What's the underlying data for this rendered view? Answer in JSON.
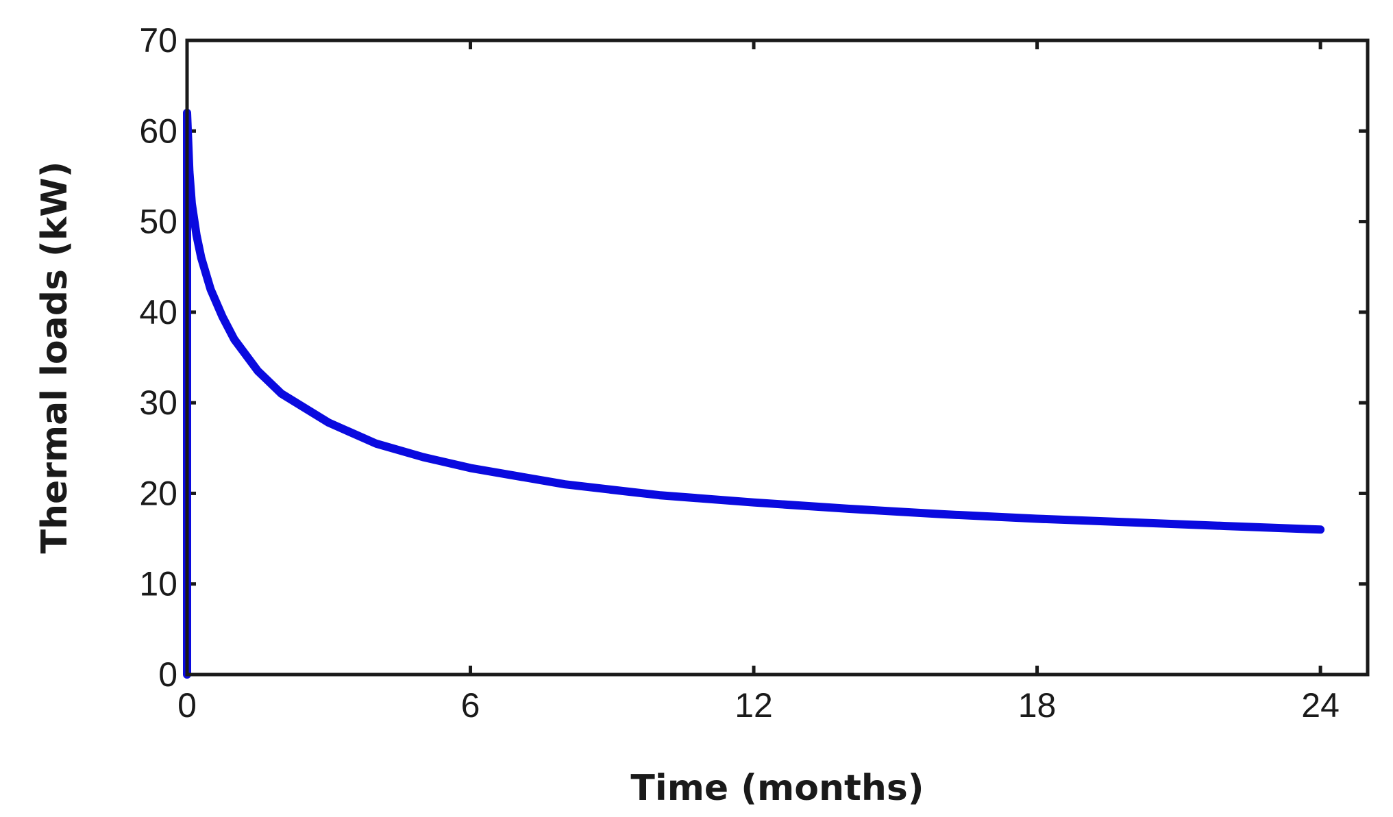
{
  "chart_data": {
    "type": "line",
    "title": "",
    "xlabel": "Time (months)",
    "ylabel": "Thermal loads (kW)",
    "xlim": [
      0,
      25
    ],
    "ylim": [
      0,
      70
    ],
    "xticks": [
      0,
      6,
      12,
      18,
      24
    ],
    "yticks": [
      0,
      10,
      20,
      30,
      40,
      50,
      60,
      70
    ],
    "grid": false,
    "legend": "none",
    "series": [
      {
        "color": "#0a0adf",
        "x": [
          0,
          0,
          0.05,
          0.1,
          0.2,
          0.3,
          0.5,
          0.75,
          1,
          1.5,
          2,
          3,
          4,
          5,
          6,
          8,
          10,
          12,
          14,
          16,
          18,
          20,
          22,
          24
        ],
        "y": [
          0,
          62,
          55.5,
          52,
          48.5,
          46,
          42.5,
          39.5,
          37,
          33.5,
          31,
          27.8,
          25.5,
          24,
          22.8,
          21,
          19.8,
          19,
          18.3,
          17.7,
          17.2,
          16.8,
          16.4,
          16
        ]
      }
    ]
  }
}
